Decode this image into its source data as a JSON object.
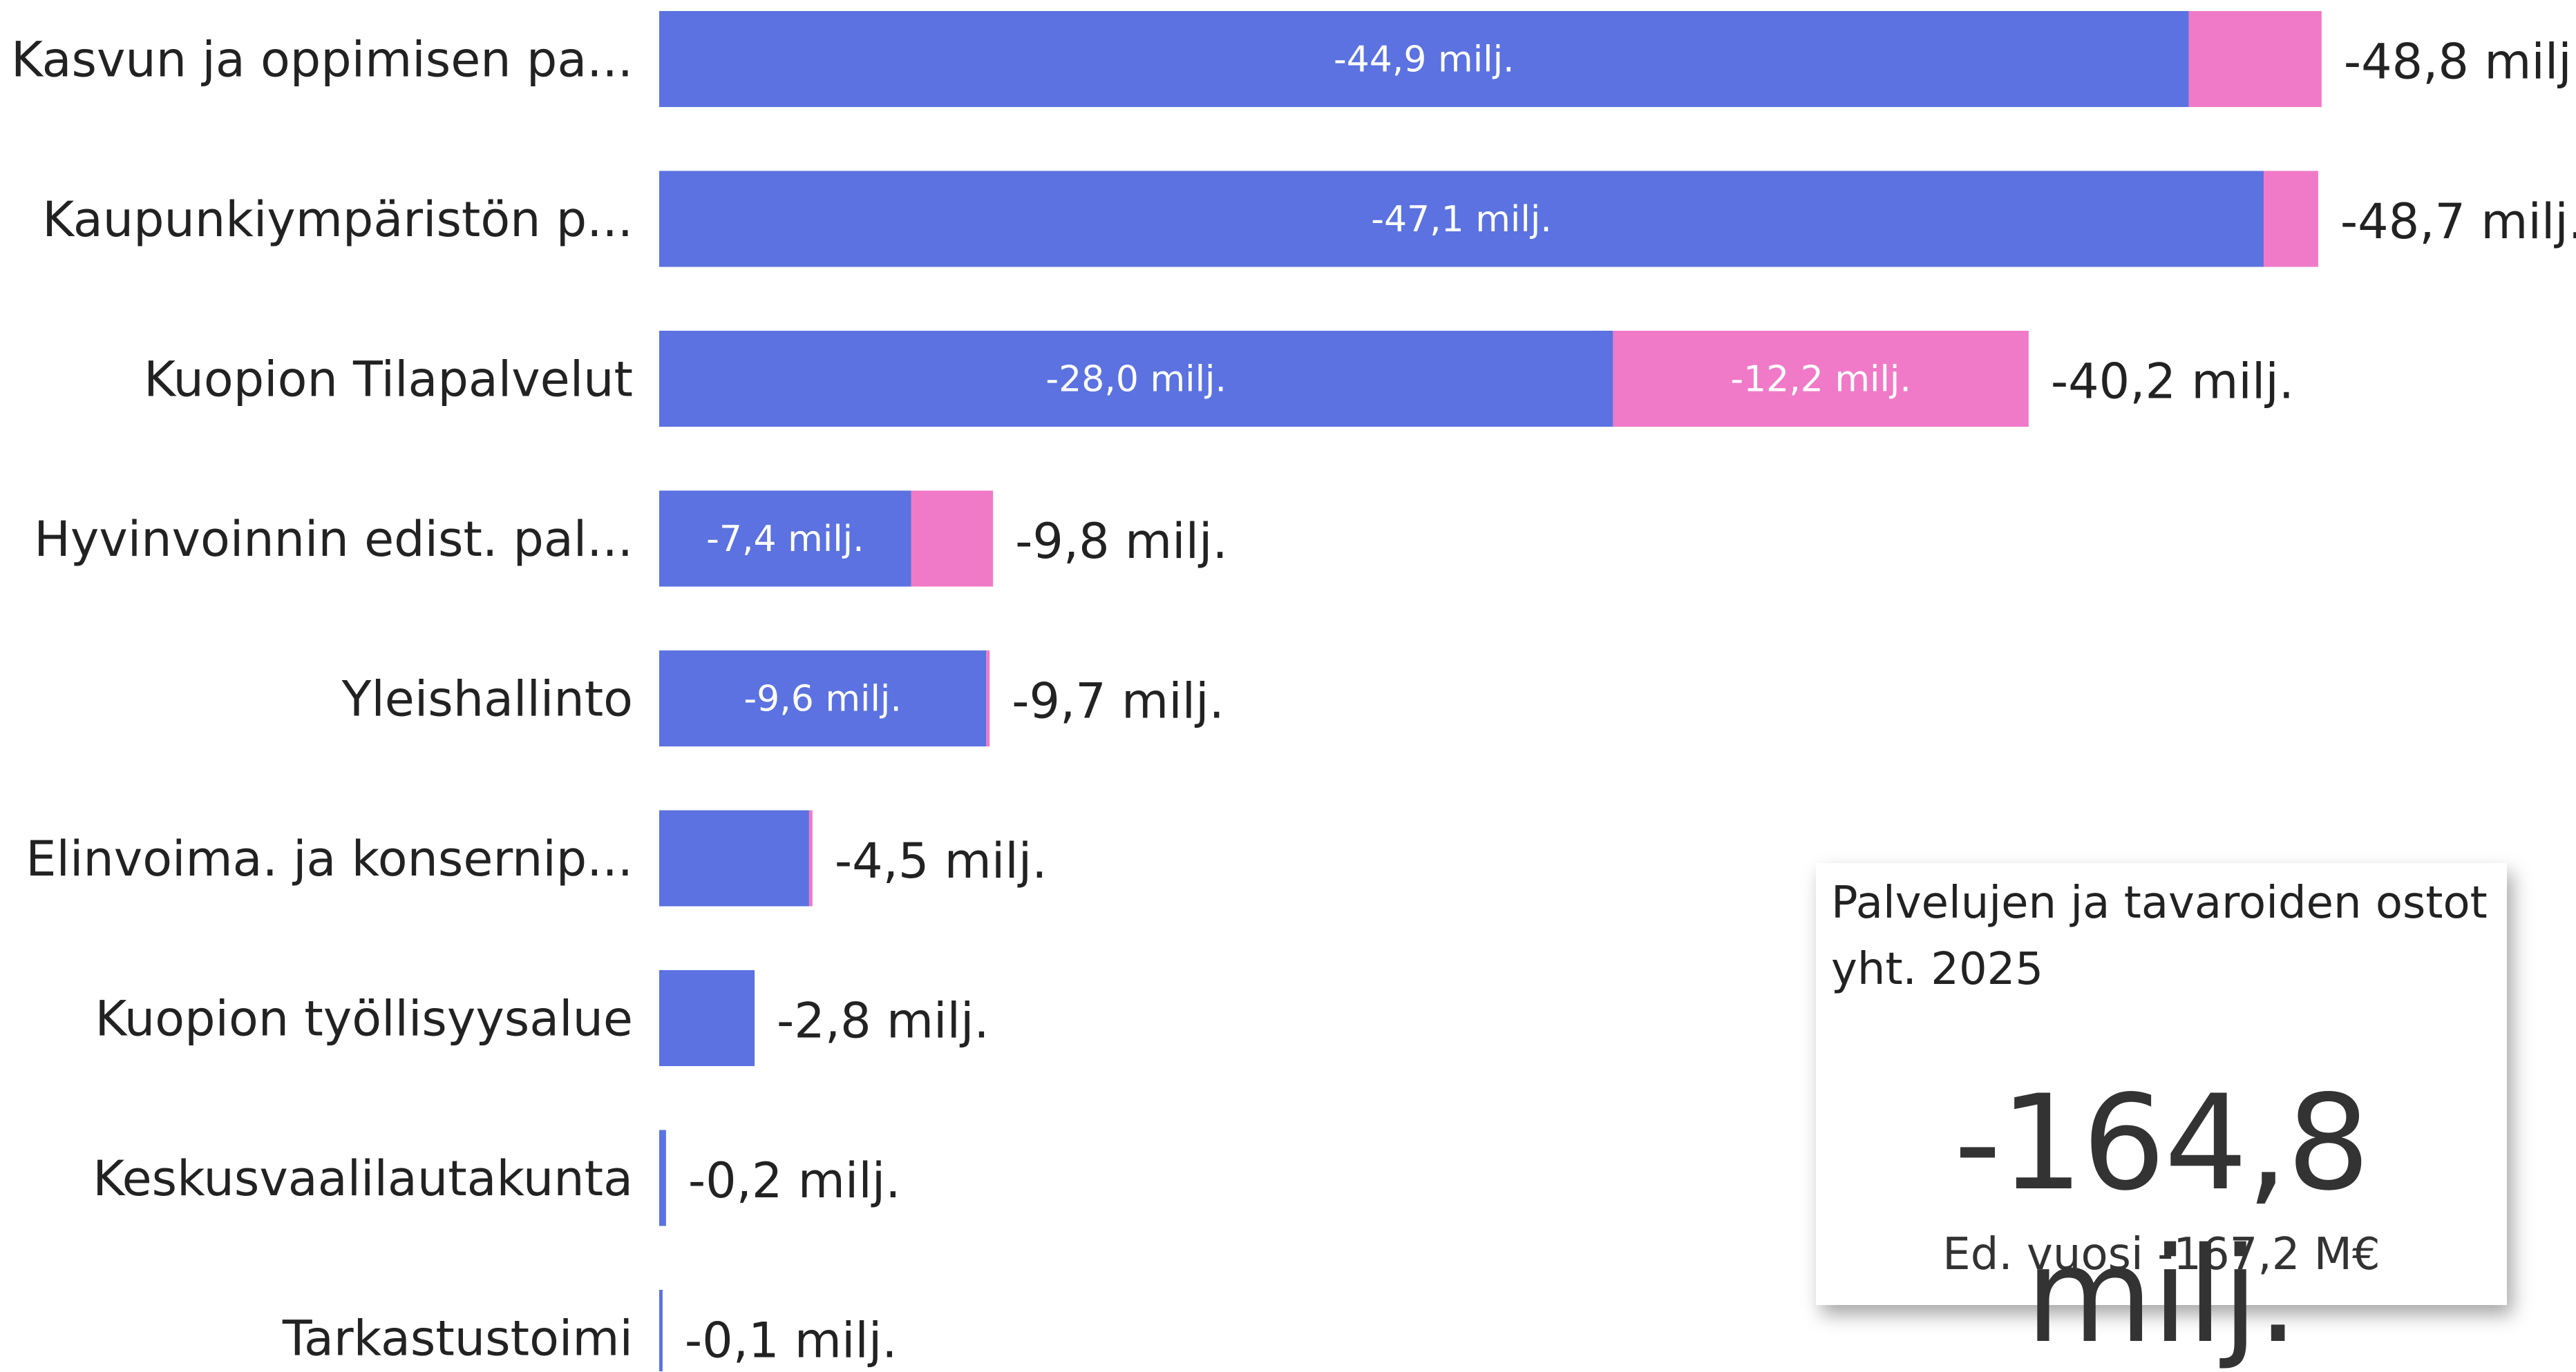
{
  "chart_data": {
    "type": "bar",
    "orientation": "horizontal",
    "stacked": true,
    "categories": [
      "Kasvun ja oppimisen pa...",
      "Kaupunkiympäristön p...",
      "Kuopion Tilapalvelut",
      "Hyvinvoinnin edist. pal...",
      "Yleishallinto",
      "Elinvoima. ja konsernip...",
      "Kuopion työllisyysalue",
      "Keskusvaalilautakunta",
      "Tarkastustoimi"
    ],
    "series": [
      {
        "color": "#5b72e0",
        "values": [
          -44.9,
          -47.1,
          -28.0,
          -7.4,
          -9.6,
          -4.4,
          -2.8,
          -0.2,
          -0.1
        ]
      },
      {
        "color": "#f07ac8",
        "values": [
          -3.9,
          -1.6,
          -12.2,
          -2.4,
          -0.1,
          -0.1,
          0.0,
          0.0,
          0.0
        ]
      }
    ],
    "inner_labels": [
      [
        "-44,9 milj.",
        "-47,1 milj.",
        "-28,0 milj.",
        "-7,4 milj.",
        "-9,6 milj.",
        "",
        "",
        "",
        ""
      ],
      [
        "",
        "",
        "-12,2 milj.",
        "",
        "",
        "",
        "",
        "",
        ""
      ]
    ],
    "totals": [
      -48.8,
      -48.7,
      -40.2,
      -9.8,
      -9.7,
      -4.5,
      -2.8,
      -0.2,
      -0.1
    ],
    "total_labels": [
      "-48,8 milj.",
      "-48,7 milj.",
      "-40,2 milj.",
      "-9,8 milj.",
      "-9,7 milj.",
      "-4,5 milj.",
      "-2,8 milj.",
      "-0,2 milj.",
      "-0,1 milj."
    ],
    "xlim": [
      0,
      -48.8
    ],
    "grid": false,
    "legend": "none"
  },
  "kpi": {
    "title": "Palvelujen ja tavaroiden ostot yht. 2025",
    "value": "-164,8 milj.",
    "previous": "Ed. vuosi -167,2 M€"
  }
}
